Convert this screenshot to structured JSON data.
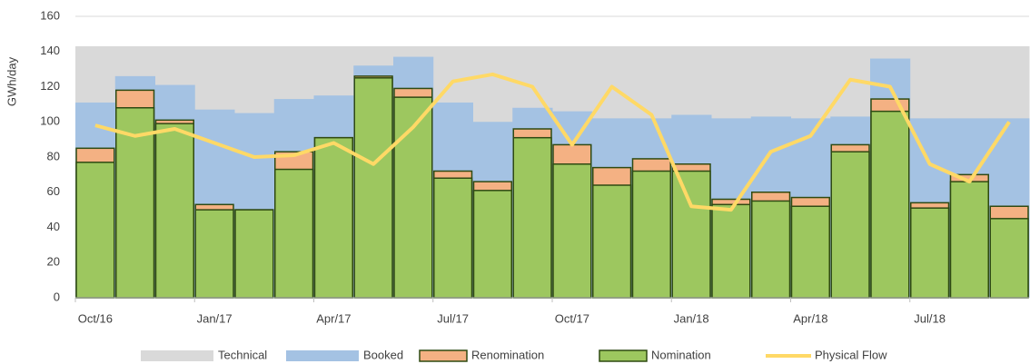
{
  "chart_data": {
    "type": "bar_line",
    "y_label": "GWh/day",
    "categories": [
      "Oct/16",
      null,
      null,
      "Jan/17",
      null,
      null,
      "Apr/17",
      null,
      null,
      "Jul/17",
      null,
      null,
      "Oct/17",
      null,
      null,
      "Jan/18",
      null,
      null,
      "Apr/18",
      null,
      null,
      "Jul/18",
      null,
      null
    ],
    "series": [
      {
        "name": "Technical",
        "color": "#d9d9d9",
        "kind": "area",
        "values": [
          143,
          143,
          143,
          143,
          143,
          143,
          143,
          143,
          143,
          143,
          143,
          143,
          143,
          143,
          143,
          143,
          143,
          143,
          143,
          143,
          143,
          143,
          143,
          143
        ]
      },
      {
        "name": "Booked",
        "color": "#a4c2e3",
        "kind": "bar",
        "values": [
          111,
          126,
          121,
          107,
          105,
          113,
          115,
          132,
          137,
          111,
          100,
          108,
          106,
          102,
          102,
          104,
          102,
          103,
          102,
          103,
          136,
          102,
          102,
          102
        ]
      },
      {
        "name": "Renomination",
        "color": "#f4b183",
        "kind": "outlined-bar",
        "values": [
          85,
          118,
          101,
          53,
          50,
          83,
          91,
          126,
          119,
          72,
          66,
          96,
          87,
          74,
          79,
          76,
          56,
          60,
          57,
          87,
          113,
          54,
          70,
          52
        ]
      },
      {
        "name": "Nomination",
        "color": "#9dc75f",
        "kind": "outlined-bar",
        "values": [
          77,
          108,
          99,
          50,
          50,
          73,
          91,
          125,
          114,
          68,
          61,
          91,
          76,
          64,
          72,
          72,
          53,
          55,
          52,
          83,
          106,
          51,
          66,
          45
        ]
      },
      {
        "name": "Physical Flow",
        "color": "#ffd966",
        "kind": "line",
        "values": [
          98,
          92,
          96,
          88,
          80,
          81,
          88,
          76,
          97,
          123,
          127,
          120,
          87,
          120,
          104,
          52,
          50,
          83,
          92,
          124,
          120,
          76,
          66,
          100
        ]
      }
    ],
    "ylim": [
      0,
      160
    ],
    "yticks": [
      0,
      20,
      40,
      60,
      80,
      100,
      120,
      140,
      160
    ],
    "grid": true,
    "legend": "bottom"
  }
}
